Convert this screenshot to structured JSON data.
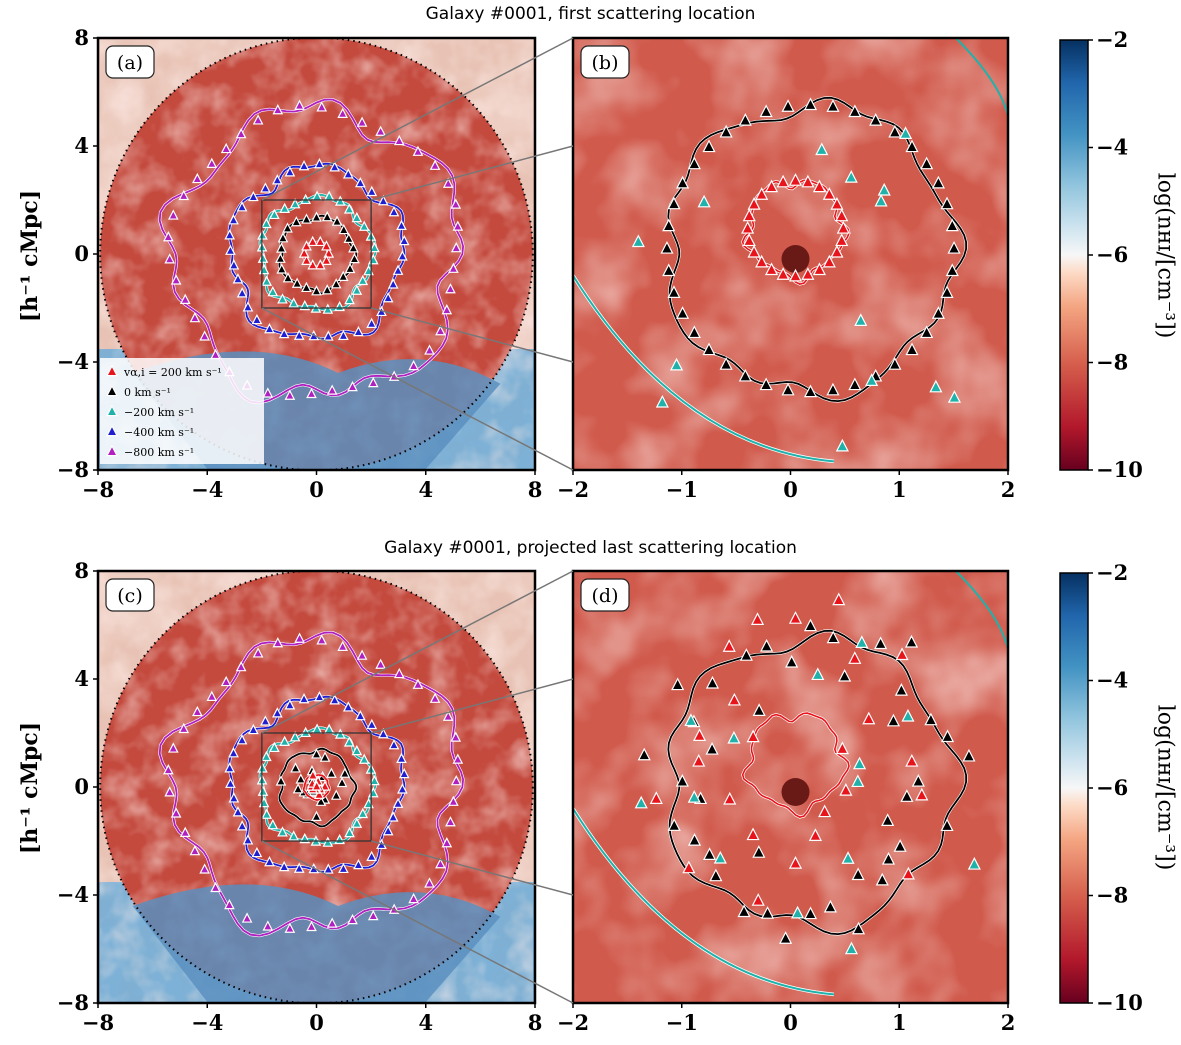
{
  "rows": [
    {
      "title": "Galaxy #0001, first scattering location",
      "left_panel_label": "(a)",
      "right_panel_label": "(b)",
      "ylabel": "[h⁻¹ cMpc]",
      "colorbar_label": "log(nʜɪ/[cm⁻³])"
    },
    {
      "title": "Galaxy #0001, projected last scattering location",
      "left_panel_label": "(c)",
      "right_panel_label": "(d)",
      "ylabel": "[h⁻¹ cMpc]",
      "colorbar_label": "log(nʜɪ/[cm⁻³])"
    }
  ],
  "legend": [
    {
      "label": "vα,i = 200 km s⁻¹",
      "color": "#e8141b"
    },
    {
      "label": "0 km s⁻¹",
      "color": "#000000"
    },
    {
      "label": "−200 km s⁻¹",
      "color": "#20b2aa"
    },
    {
      "label": "−400 km s⁻¹",
      "color": "#1f1fd0"
    },
    {
      "label": "−800 km s⁻¹",
      "color": "#b01fc0"
    }
  ],
  "chart_data": [
    {
      "type": "heatmap",
      "panel": "a",
      "xlim": [
        -8,
        8
      ],
      "ylim": [
        -8,
        8
      ],
      "xticks": [
        "−8",
        "−4",
        "0",
        "4",
        "8"
      ],
      "yticks": [
        "8",
        "4",
        "0",
        "−4",
        "−8"
      ],
      "contour_radii": {
        "200": 0.5,
        "0": 1.4,
        "-200": 2.1,
        "-400": 3.2,
        "-800": 5.3
      },
      "zoom_box": [
        -2,
        2
      ]
    },
    {
      "type": "heatmap",
      "panel": "b",
      "xlim": [
        -2,
        2
      ],
      "ylim": [
        -2,
        2
      ],
      "xticks": [
        "−2",
        "−1",
        "0",
        "1",
        "2"
      ]
    },
    {
      "type": "heatmap",
      "panel": "c",
      "xlim": [
        -8,
        8
      ],
      "ylim": [
        -8,
        8
      ],
      "xticks": [
        "−8",
        "−4",
        "0",
        "4",
        "8"
      ],
      "yticks": [
        "8",
        "4",
        "0",
        "−4",
        "−8"
      ],
      "zoom_box": [
        -2,
        2
      ]
    },
    {
      "type": "heatmap",
      "panel": "d",
      "xlim": [
        -2,
        2
      ],
      "ylim": [
        -2,
        2
      ],
      "xticks": [
        "−2",
        "−1",
        "0",
        "1",
        "2"
      ]
    },
    {
      "type": "colorbar",
      "label": "log(nʜɪ/[cm⁻³])",
      "range": [
        -10,
        -2
      ],
      "ticks": [
        "−2",
        "−4",
        "−6",
        "−8",
        "−10"
      ],
      "colormap": [
        "#67001f",
        "#b2182b",
        "#d6604d",
        "#f4a582",
        "#fddbc7",
        "#f7f7f7",
        "#d1e5f0",
        "#92c5de",
        "#4393c3",
        "#2166ac",
        "#053061"
      ]
    }
  ]
}
